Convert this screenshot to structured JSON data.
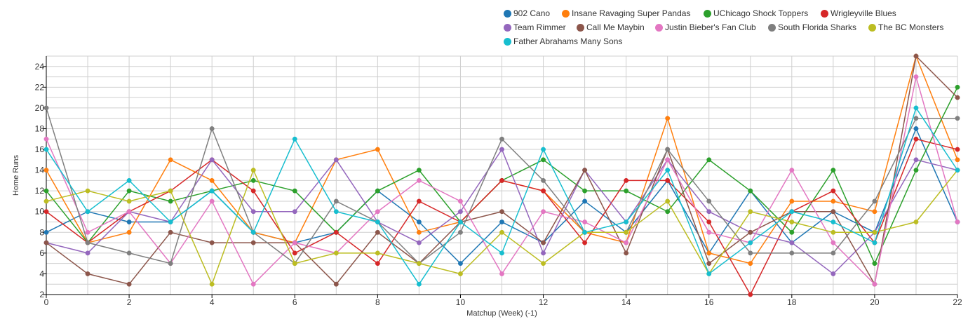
{
  "chart_data": {
    "type": "line",
    "xlabel": "Matchup (Week) (-1)",
    "ylabel": "Home Runs",
    "xlim": [
      0,
      22
    ],
    "ylim": [
      2,
      25
    ],
    "x_ticks": [
      0,
      2,
      4,
      6,
      8,
      10,
      12,
      14,
      16,
      18,
      20,
      22
    ],
    "y_ticks": [
      2,
      4,
      6,
      8,
      10,
      12,
      14,
      16,
      18,
      20,
      22,
      24
    ],
    "grid": true,
    "legend_position": "top-right",
    "x": [
      0,
      1,
      2,
      3,
      4,
      5,
      6,
      7,
      8,
      9,
      10,
      11,
      12,
      13,
      14,
      15,
      16,
      17,
      18,
      19,
      20,
      21,
      22
    ],
    "series": [
      {
        "name": "902 Cano",
        "color": "#1f77b4",
        "values": [
          8,
          10,
          9,
          9,
          12,
          8,
          7,
          8,
          12,
          9,
          5,
          9,
          7,
          11,
          8,
          13,
          6,
          12,
          7,
          10,
          8,
          18,
          9
        ]
      },
      {
        "name": "Insane Ravaging Super Pandas",
        "color": "#ff7f0e",
        "values": [
          14,
          7,
          8,
          15,
          13,
          8,
          7,
          15,
          16,
          8,
          9,
          13,
          12,
          8,
          7,
          19,
          6,
          5,
          11,
          11,
          10,
          25,
          15
        ]
      },
      {
        "name": "UChicago Shock Toppers",
        "color": "#2ca02c",
        "values": [
          12,
          7,
          12,
          11,
          12,
          13,
          12,
          8,
          12,
          14,
          9,
          13,
          15,
          12,
          12,
          10,
          15,
          12,
          8,
          14,
          5,
          14,
          22
        ]
      },
      {
        "name": "Wrigleyville Blues",
        "color": "#d62728",
        "values": [
          10,
          7,
          10,
          12,
          15,
          12,
          6,
          8,
          5,
          11,
          9,
          13,
          12,
          7,
          13,
          13,
          9,
          2,
          10,
          12,
          7,
          17,
          16
        ]
      },
      {
        "name": "Team Rimmer",
        "color": "#9467bd",
        "values": [
          7,
          6,
          10,
          9,
          15,
          10,
          10,
          15,
          9,
          7,
          10,
          16,
          6,
          14,
          9,
          15,
          10,
          8,
          7,
          4,
          8,
          15,
          14
        ]
      },
      {
        "name": "Call Me Maybin",
        "color": "#8c564b",
        "values": [
          7,
          4,
          3,
          8,
          7,
          7,
          7,
          3,
          8,
          5,
          9,
          10,
          7,
          14,
          6,
          16,
          5,
          8,
          10,
          10,
          3,
          25,
          21
        ]
      },
      {
        "name": "Justin Bieber's Fan Club",
        "color": "#e377c2",
        "values": [
          17,
          8,
          10,
          5,
          11,
          3,
          7,
          6,
          10,
          13,
          11,
          4,
          10,
          9,
          7,
          15,
          8,
          7,
          14,
          7,
          3,
          23,
          9
        ]
      },
      {
        "name": "South Florida Sharks",
        "color": "#7f7f7f",
        "values": [
          20,
          7,
          6,
          5,
          18,
          8,
          5,
          11,
          9,
          5,
          8,
          17,
          13,
          8,
          8,
          16,
          11,
          6,
          6,
          6,
          11,
          19,
          19
        ]
      },
      {
        "name": "The BC Monsters",
        "color": "#bcbd22",
        "values": [
          11,
          12,
          11,
          12,
          3,
          14,
          5,
          6,
          6,
          5,
          4,
          8,
          5,
          8,
          8,
          11,
          4,
          10,
          9,
          8,
          8,
          9,
          14
        ]
      },
      {
        "name": "Father Abrahams Many Sons",
        "color": "#17becf",
        "values": [
          16,
          10,
          13,
          9,
          12,
          8,
          17,
          10,
          9,
          3,
          9,
          6,
          16,
          8,
          9,
          14,
          4,
          7,
          10,
          9,
          7,
          20,
          14
        ]
      }
    ]
  }
}
